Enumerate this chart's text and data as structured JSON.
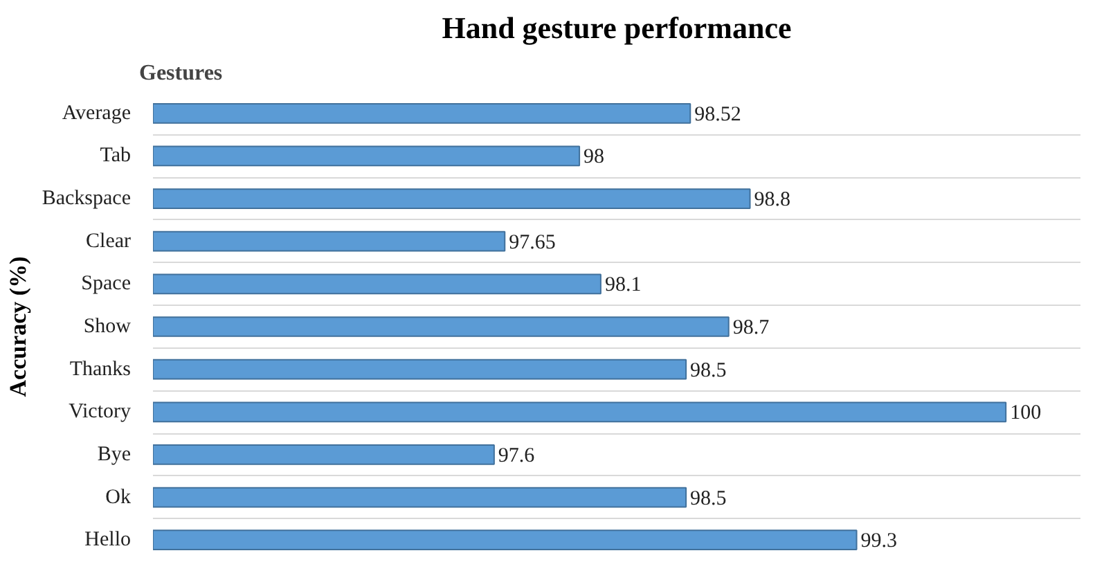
{
  "chart_data": {
    "type": "bar",
    "orientation": "horizontal",
    "title": "Hand gesture performance",
    "ylabel": "Accuracy (%)",
    "annotations": [
      "Gestures"
    ],
    "categories": [
      "Average",
      "Tab",
      "Backspace",
      "Clear",
      "Space",
      "Show",
      "Thanks",
      "Victory",
      "Bye",
      "Ok",
      "Hello"
    ],
    "values": [
      98.52,
      98,
      98.8,
      97.65,
      98.1,
      98.7,
      98.5,
      100,
      97.6,
      98.5,
      99.3
    ],
    "color": "#5b9bd5",
    "xlim": [
      96,
      100.35
    ],
    "data_labels": true,
    "grid": "y",
    "tick_labels": "y"
  }
}
